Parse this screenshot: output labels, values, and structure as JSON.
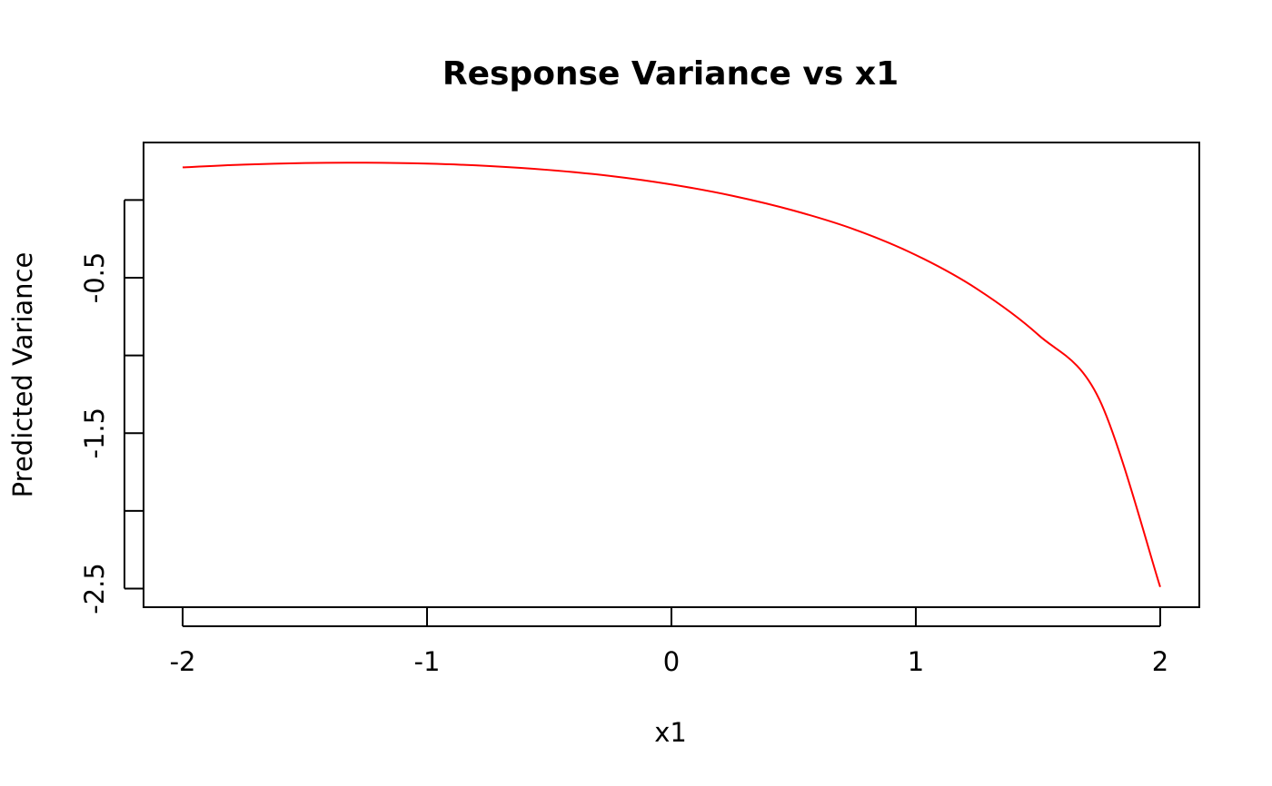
{
  "chart_data": {
    "type": "line",
    "title": "Response Variance vs x1",
    "xlabel": "x1",
    "ylabel": "Predicted Variance",
    "xlim": [
      -2.16,
      2.16
    ],
    "ylim": [
      -2.62,
      0.37
    ],
    "x_ticks": [
      -2,
      -1,
      0,
      1,
      2
    ],
    "x_tick_labels": [
      "-2",
      "-1",
      "0",
      "1",
      "2"
    ],
    "y_ticks": [
      -2.5,
      -2.0,
      -1.5,
      -1.0,
      -0.5,
      0.0
    ],
    "y_tick_labels": [
      "-2.5",
      "",
      "-1.5",
      "",
      "-0.5",
      ""
    ],
    "grid": false,
    "line_color": "#ff0000",
    "series": [
      {
        "x": [
          -2.0,
          -1.75,
          -1.5,
          -1.25,
          -1.0,
          -0.75,
          -0.5,
          -0.25,
          0.0,
          0.25,
          0.5,
          0.75,
          1.0,
          1.25,
          1.5,
          1.75,
          2.0
        ],
        "y": [
          0.21,
          0.228,
          0.238,
          0.24,
          0.234,
          0.219,
          0.193,
          0.155,
          0.1,
          0.027,
          -0.068,
          -0.19,
          -0.354,
          -0.572,
          -0.866,
          -1.28,
          -2.49
        ]
      }
    ]
  }
}
